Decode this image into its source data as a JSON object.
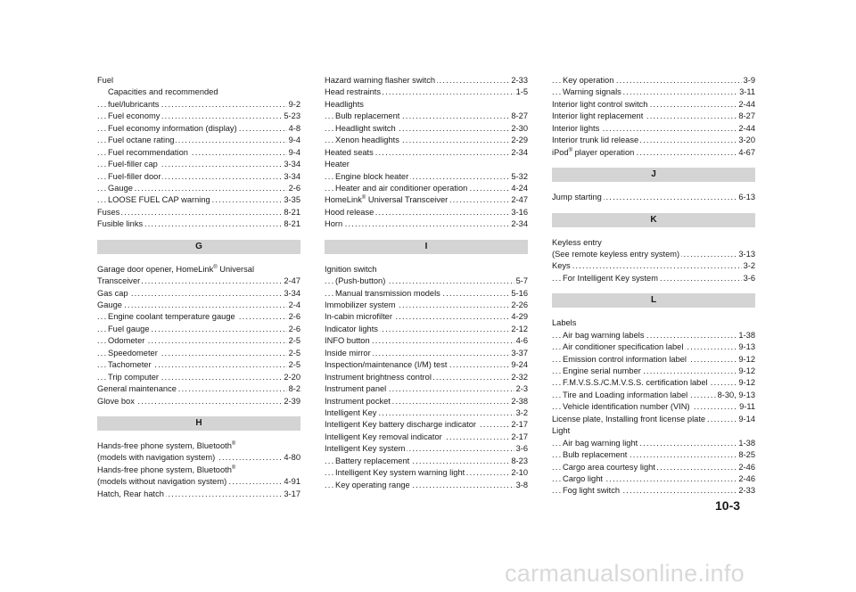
{
  "columns": [
    [
      {
        "t": "Fuel",
        "p": "",
        "l": 0
      },
      {
        "t": "Capacities and recommended",
        "p": "",
        "l": 1
      },
      {
        "t": "fuel/lubricants",
        "p": "9-2",
        "l": 1
      },
      {
        "t": "Fuel economy",
        "p": "5-23",
        "l": 1
      },
      {
        "t": "Fuel economy information (display)",
        "p": "4-8",
        "l": 1
      },
      {
        "t": "Fuel octane rating",
        "p": "9-4",
        "l": 1
      },
      {
        "t": "Fuel recommendation",
        "p": "9-4",
        "l": 1
      },
      {
        "t": "Fuel-filler cap",
        "p": "3-34",
        "l": 1
      },
      {
        "t": "Fuel-filler door",
        "p": "3-34",
        "l": 1
      },
      {
        "t": "Gauge",
        "p": "2-6",
        "l": 1
      },
      {
        "t": "LOOSE FUEL CAP warning",
        "p": "3-35",
        "l": 1
      },
      {
        "t": "Fuses",
        "p": "8-21",
        "l": 0
      },
      {
        "t": "Fusible links",
        "p": "8-21",
        "l": 0
      },
      {
        "letter": "G"
      },
      {
        "t": "Garage door opener, HomeLink® Universal",
        "p": "",
        "l": 0
      },
      {
        "t": "Transceiver",
        "p": "2-47",
        "l": 0
      },
      {
        "t": "Gas cap",
        "p": "3-34",
        "l": 0
      },
      {
        "t": "Gauge",
        "p": "2-4",
        "l": 0
      },
      {
        "t": "Engine coolant temperature gauge",
        "p": "2-6",
        "l": 1
      },
      {
        "t": "Fuel gauge",
        "p": "2-6",
        "l": 1
      },
      {
        "t": "Odometer",
        "p": "2-5",
        "l": 1
      },
      {
        "t": "Speedometer",
        "p": "2-5",
        "l": 1
      },
      {
        "t": "Tachometer",
        "p": "2-5",
        "l": 1
      },
      {
        "t": "Trip computer",
        "p": "2-20",
        "l": 1
      },
      {
        "t": "General maintenance",
        "p": "8-2",
        "l": 0
      },
      {
        "t": "Glove box",
        "p": "2-39",
        "l": 0
      },
      {
        "letter": "H"
      },
      {
        "t": "Hands-free phone system, Bluetooth®",
        "p": "",
        "l": 0
      },
      {
        "t": "(models with navigation system)",
        "p": "4-80",
        "l": 0
      },
      {
        "t": "Hands-free phone system, Bluetooth®",
        "p": "",
        "l": 0
      },
      {
        "t": "(models without navigation system)",
        "p": "4-91",
        "l": 0
      },
      {
        "t": "Hatch, Rear hatch",
        "p": "3-17",
        "l": 0
      }
    ],
    [
      {
        "t": "Hazard warning flasher switch",
        "p": "2-33",
        "l": 0
      },
      {
        "t": "Head restraints",
        "p": "1-5",
        "l": 0
      },
      {
        "t": "Headlights",
        "p": "",
        "l": 0
      },
      {
        "t": "Bulb replacement",
        "p": "8-27",
        "l": 1
      },
      {
        "t": "Headlight switch",
        "p": "2-30",
        "l": 1
      },
      {
        "t": "Xenon headlights",
        "p": "2-29",
        "l": 1
      },
      {
        "t": "Heated seats",
        "p": "2-34",
        "l": 0
      },
      {
        "t": "Heater",
        "p": "",
        "l": 0
      },
      {
        "t": "Engine block heater",
        "p": "5-32",
        "l": 1
      },
      {
        "t": "Heater and air conditioner operation",
        "p": "4-24",
        "l": 1
      },
      {
        "t": "HomeLink® Universal Transceiver",
        "p": "2-47",
        "l": 0
      },
      {
        "t": "Hood release",
        "p": "3-16",
        "l": 0
      },
      {
        "t": "Horn",
        "p": "2-34",
        "l": 0
      },
      {
        "letter": "I"
      },
      {
        "t": "Ignition switch",
        "p": "",
        "l": 0
      },
      {
        "t": "(Push-button)",
        "p": "5-7",
        "l": 1
      },
      {
        "t": "Manual transmission models",
        "p": "5-16",
        "l": 1
      },
      {
        "t": "Immobilizer system",
        "p": "2-26",
        "l": 0
      },
      {
        "t": "In-cabin microfilter",
        "p": "4-29",
        "l": 0
      },
      {
        "t": "Indicator lights",
        "p": "2-12",
        "l": 0
      },
      {
        "t": "INFO button",
        "p": "4-6",
        "l": 0
      },
      {
        "t": "Inside mirror",
        "p": "3-37",
        "l": 0
      },
      {
        "t": "Inspection/maintenance (I/M) test",
        "p": "9-24",
        "l": 0
      },
      {
        "t": "Instrument brightness control",
        "p": "2-32",
        "l": 0
      },
      {
        "t": "Instrument panel",
        "p": "2-3",
        "l": 0
      },
      {
        "t": "Instrument pocket",
        "p": "2-38",
        "l": 0
      },
      {
        "t": "Intelligent Key",
        "p": "3-2",
        "l": 0
      },
      {
        "t": "Intelligent Key battery discharge indicator",
        "p": "2-17",
        "l": 0
      },
      {
        "t": "Intelligent Key removal indicator",
        "p": "2-17",
        "l": 0
      },
      {
        "t": "Intelligent Key system",
        "p": "3-6",
        "l": 0
      },
      {
        "t": "Battery replacement",
        "p": "8-23",
        "l": 1
      },
      {
        "t": "Intelligent Key system warning light",
        "p": "2-10",
        "l": 1
      },
      {
        "t": "Key operating range",
        "p": "3-8",
        "l": 1
      }
    ],
    [
      {
        "t": "Key operation",
        "p": "3-9",
        "l": 1
      },
      {
        "t": "Warning signals",
        "p": "3-11",
        "l": 1
      },
      {
        "t": "Interior light control switch",
        "p": "2-44",
        "l": 0
      },
      {
        "t": "Interior light replacement",
        "p": "8-27",
        "l": 0
      },
      {
        "t": "Interior lights",
        "p": "2-44",
        "l": 0
      },
      {
        "t": "Interior trunk lid release",
        "p": "3-20",
        "l": 0
      },
      {
        "t": "iPod® player operation",
        "p": "4-67",
        "l": 0
      },
      {
        "letter": "J"
      },
      {
        "t": "Jump starting",
        "p": "6-13",
        "l": 0
      },
      {
        "letter": "K"
      },
      {
        "t": "Keyless entry",
        "p": "",
        "l": 0
      },
      {
        "t": "(See remote keyless entry system)",
        "p": "3-13",
        "l": 0
      },
      {
        "t": "Keys",
        "p": "3-2",
        "l": 0
      },
      {
        "t": "For Intelligent Key system",
        "p": "3-6",
        "l": 1
      },
      {
        "letter": "L"
      },
      {
        "t": "Labels",
        "p": "",
        "l": 0
      },
      {
        "t": "Air bag warning labels",
        "p": "1-38",
        "l": 1
      },
      {
        "t": "Air conditioner specification label",
        "p": "9-13",
        "l": 1
      },
      {
        "t": "Emission control information label",
        "p": "9-12",
        "l": 1
      },
      {
        "t": "Engine serial number",
        "p": "9-12",
        "l": 1
      },
      {
        "t": "F.M.V.S.S./C.M.V.S.S. certification label",
        "p": "9-12",
        "l": 1
      },
      {
        "t": "Tire and Loading information label",
        "p": "8-30, 9-13",
        "l": 1
      },
      {
        "t": "Vehicle identification number (VIN)",
        "p": "9-11",
        "l": 1
      },
      {
        "t": "License plate, Installing front license plate",
        "p": "9-14",
        "l": 0
      },
      {
        "t": "Light",
        "p": "",
        "l": 0
      },
      {
        "t": "Air bag warning light",
        "p": "1-38",
        "l": 1
      },
      {
        "t": "Bulb replacement",
        "p": "8-25",
        "l": 1
      },
      {
        "t": "Cargo area courtesy light",
        "p": "2-46",
        "l": 1
      },
      {
        "t": "Cargo light",
        "p": "2-46",
        "l": 1
      },
      {
        "t": "Fog light switch",
        "p": "2-33",
        "l": 1
      }
    ]
  ],
  "page_number": "10-3",
  "watermark": "carmanualsonline.info"
}
